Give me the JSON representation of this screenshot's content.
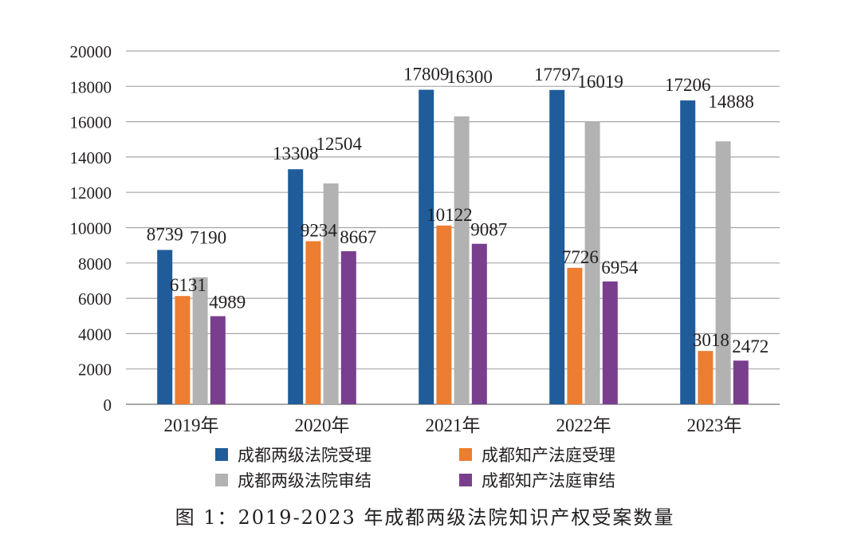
{
  "chart_data": {
    "type": "bar",
    "title": "",
    "xlabel": "",
    "ylabel": "",
    "ylim": [
      0,
      20000
    ],
    "yticks": [
      0,
      2000,
      4000,
      6000,
      8000,
      10000,
      12000,
      14000,
      16000,
      18000,
      20000
    ],
    "grid": true,
    "legend_position": "bottom",
    "categories": [
      "2019年",
      "2020年",
      "2021年",
      "2022年",
      "2023年"
    ],
    "series": [
      {
        "name": "成都两级法院受理",
        "color": "#1f5c99",
        "values": [
          8739,
          13308,
          17809,
          17797,
          17206
        ]
      },
      {
        "name": "成都知产法庭受理",
        "color": "#ed7d31",
        "values": [
          6131,
          9234,
          10122,
          7726,
          3018
        ]
      },
      {
        "name": "成都两级法院审结",
        "color": "#b2b2b2",
        "values": [
          7190,
          12504,
          16300,
          16019,
          14888
        ]
      },
      {
        "name": "成都知产法庭审结",
        "color": "#7a3e8e",
        "values": [
          4989,
          8667,
          9087,
          6954,
          2472
        ]
      }
    ]
  },
  "caption": "图 1：2019-2023 年成都两级法院知识产权受案数量"
}
